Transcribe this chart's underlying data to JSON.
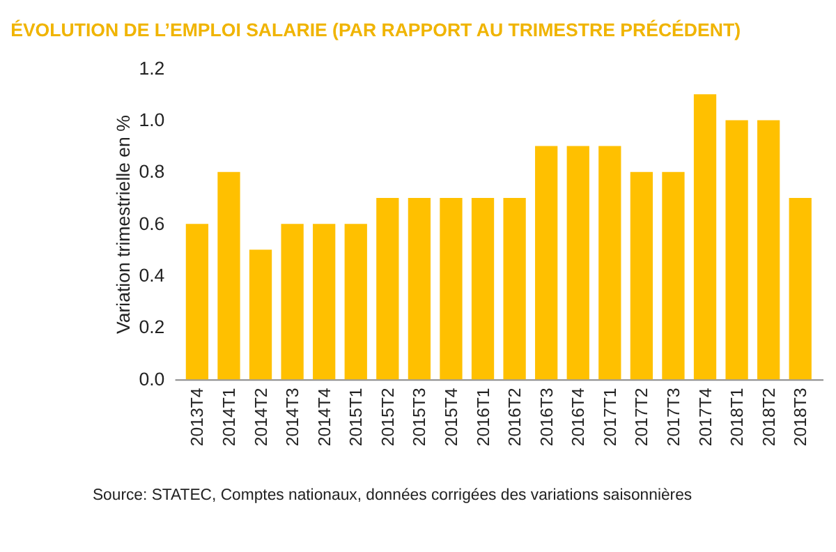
{
  "chart_data": {
    "type": "bar",
    "title": "ÉVOLUTION DE L’EMPLOI SALARIE (PAR RAPPORT AU TRIMESTRE PRÉCÉDENT)",
    "ylabel": "Variation trimestrielle en %",
    "categories": [
      "2013T4",
      "2014T1",
      "2014T2",
      "2014T3",
      "2014T4",
      "2015T1",
      "2015T2",
      "2015T3",
      "2015T4",
      "2016T1",
      "2016T2",
      "2016T3",
      "2016T4",
      "2017T1",
      "2017T2",
      "2017T3",
      "2017T4",
      "2018T1",
      "2018T2",
      "2018T3"
    ],
    "values": [
      0.6,
      0.8,
      0.5,
      0.6,
      0.6,
      0.6,
      0.7,
      0.7,
      0.7,
      0.7,
      0.7,
      0.9,
      0.9,
      0.9,
      0.8,
      0.8,
      1.1,
      1.0,
      1.0,
      0.7
    ],
    "color": "#ffc000",
    "ylim": [
      0,
      1.2
    ],
    "yticks": [
      {
        "value": 0,
        "label": "0.0"
      },
      0.2,
      0.4,
      0.6,
      0.8,
      {
        "value": 1,
        "label": "1.0"
      },
      1.2
    ],
    "grid": false,
    "annotations": [
      "Source: STATEC, Comptes nationaux, données corrigées des variations saisonnières"
    ]
  }
}
